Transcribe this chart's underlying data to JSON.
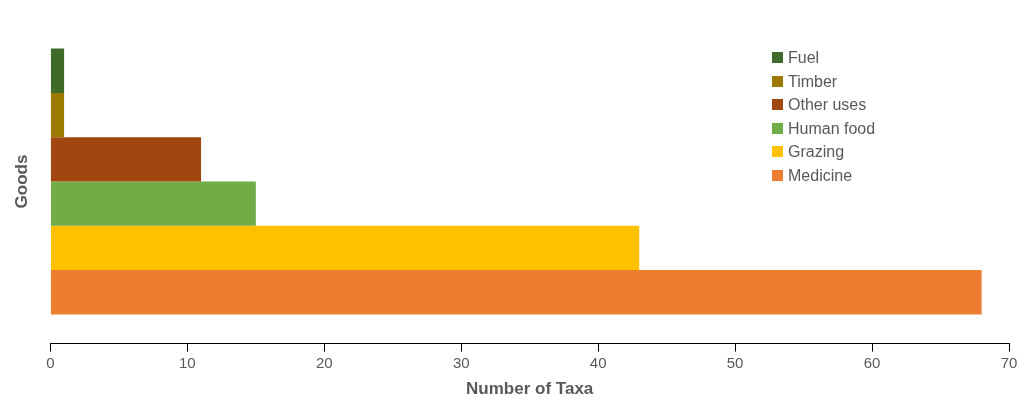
{
  "chart_data": {
    "type": "bar",
    "orientation": "horizontal",
    "xlabel": "Number of Taxa",
    "ylabel": "Goods",
    "categories": [
      null
    ],
    "series": [
      {
        "name": "Fuel",
        "color": "#3f6b2a",
        "values": [
          1
        ]
      },
      {
        "name": "Timber",
        "color": "#9c7a00",
        "values": [
          1
        ]
      },
      {
        "name": "Other uses",
        "color": "#a0460e",
        "values": [
          11
        ]
      },
      {
        "name": "Human food",
        "color": "#70ad47",
        "values": [
          15
        ]
      },
      {
        "name": "Grazing",
        "color": "#ffc000",
        "values": [
          43
        ]
      },
      {
        "name": "Medicine",
        "color": "#ed7d31",
        "values": [
          68
        ]
      }
    ],
    "xlim": [
      0,
      70
    ],
    "xticks": [
      0,
      10,
      20,
      30,
      40,
      50,
      60,
      70
    ],
    "grid": false,
    "legend": "top right"
  }
}
